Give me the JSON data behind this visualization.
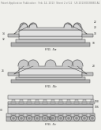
{
  "bg_color": "#efefeb",
  "header_text": "Patent Application Publication   Feb. 14, 2013  Sheet 2 of 22   US 2013/0038880 A1",
  "header_fontsize": 2.2,
  "fig_labels": [
    "FIG. 5a",
    "FIG. 5b",
    "FIG. 5c"
  ],
  "lc": "#444444",
  "lw": 0.35
}
